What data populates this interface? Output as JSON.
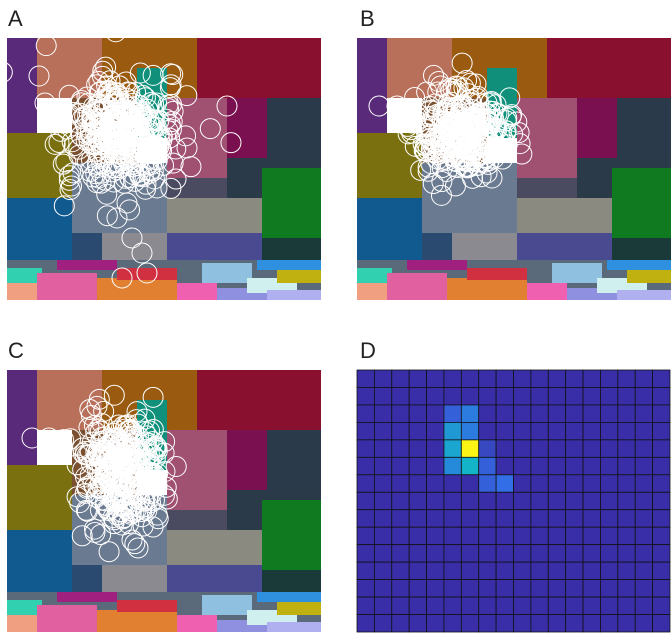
{
  "panels": [
    {
      "label": "A"
    },
    {
      "label": "B"
    },
    {
      "label": "C"
    },
    {
      "label": "D",
      "heatmap": [
        [
          0,
          0,
          0,
          0,
          0,
          0,
          0,
          0,
          0,
          0,
          0,
          0,
          0,
          0,
          0,
          0,
          0,
          0
        ],
        [
          0,
          0,
          0,
          0,
          0,
          0,
          0,
          0,
          0,
          0,
          0,
          0,
          0,
          0,
          0,
          0,
          0,
          0
        ],
        [
          0,
          0,
          0,
          0,
          0,
          0.2,
          0.3,
          0,
          0,
          0,
          0,
          0,
          0,
          0,
          0,
          0,
          0,
          0
        ],
        [
          0,
          0,
          0,
          0,
          0,
          0.4,
          0.3,
          0,
          0,
          0,
          0,
          0,
          0,
          0,
          0,
          0,
          0,
          0
        ],
        [
          0,
          0,
          0,
          0,
          0,
          0.45,
          1,
          0.1,
          0,
          0,
          0,
          0,
          0,
          0,
          0,
          0,
          0,
          0
        ],
        [
          0,
          0,
          0,
          0,
          0,
          0.35,
          0.5,
          0.2,
          0,
          0,
          0,
          0,
          0,
          0,
          0,
          0,
          0,
          0
        ],
        [
          0,
          0,
          0,
          0,
          0,
          0,
          0,
          0.2,
          0.25,
          0,
          0,
          0,
          0,
          0,
          0,
          0,
          0,
          0
        ],
        [
          0,
          0,
          0,
          0,
          0,
          0,
          0,
          0,
          0,
          0,
          0,
          0,
          0,
          0,
          0,
          0,
          0,
          0
        ],
        [
          0,
          0,
          0,
          0,
          0,
          0,
          0,
          0,
          0,
          0,
          0,
          0,
          0,
          0,
          0,
          0,
          0,
          0
        ],
        [
          0,
          0,
          0,
          0,
          0,
          0,
          0,
          0,
          0,
          0,
          0,
          0,
          0,
          0,
          0,
          0,
          0,
          0
        ],
        [
          0,
          0,
          0,
          0,
          0,
          0,
          0,
          0,
          0,
          0,
          0,
          0,
          0,
          0,
          0,
          0,
          0,
          0
        ],
        [
          0,
          0,
          0,
          0,
          0,
          0,
          0,
          0,
          0,
          0,
          0,
          0,
          0,
          0,
          0,
          0,
          0,
          0
        ],
        [
          0,
          0,
          0,
          0,
          0,
          0,
          0,
          0,
          0,
          0,
          0,
          0,
          0,
          0,
          0,
          0,
          0,
          0
        ],
        [
          0,
          0,
          0,
          0,
          0,
          0,
          0,
          0,
          0,
          0,
          0,
          0,
          0,
          0,
          0,
          0,
          0,
          0
        ],
        [
          0,
          0,
          0,
          0,
          0,
          0,
          0,
          0,
          0,
          0,
          0,
          0,
          0,
          0,
          0,
          0,
          0,
          0
        ]
      ]
    }
  ]
}
